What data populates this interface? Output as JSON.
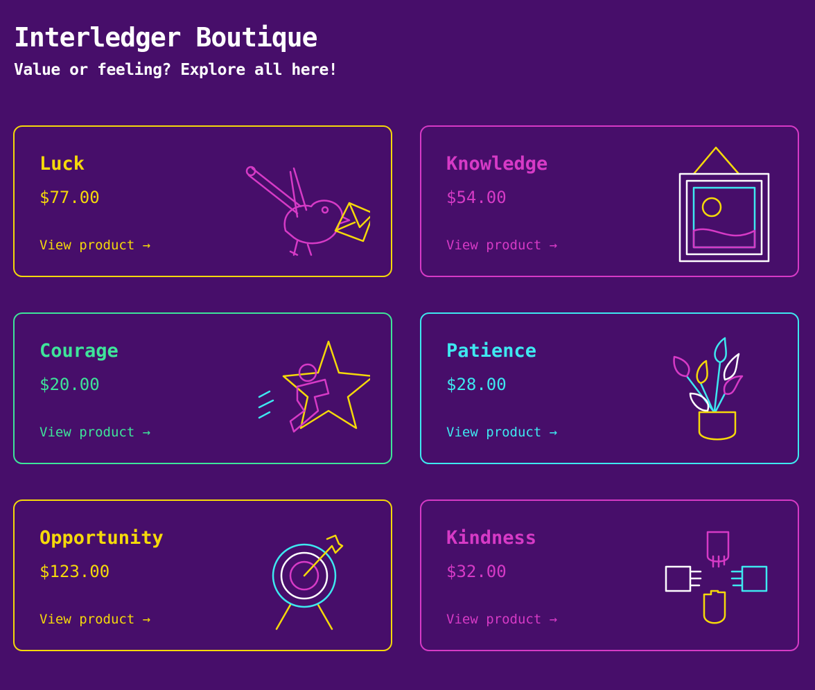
{
  "header": {
    "title": "Interledger Boutique",
    "subtitle": "Value or feeling? Explore all here!"
  },
  "colors": {
    "background": "#470e6a",
    "yellow": "#f5d90a",
    "pink": "#d63ac6",
    "green": "#3ee59a",
    "cyan": "#3ee8f0",
    "white": "#ffffff"
  },
  "products": [
    {
      "name": "Luck",
      "price": "$77.00",
      "link": "View product →",
      "icon": "bird-with-envelope-icon",
      "color": "#f5d90a"
    },
    {
      "name": "Knowledge",
      "price": "$54.00",
      "link": "View product →",
      "icon": "framed-picture-icon",
      "color": "#d63ac6"
    },
    {
      "name": "Courage",
      "price": "$20.00",
      "link": "View product →",
      "icon": "running-star-icon",
      "color": "#3ee59a"
    },
    {
      "name": "Patience",
      "price": "$28.00",
      "link": "View product →",
      "icon": "potted-plant-icon",
      "color": "#3ee8f0"
    },
    {
      "name": "Opportunity",
      "price": "$123.00",
      "link": "View product →",
      "icon": "target-arrow-icon",
      "color": "#f5d90a"
    },
    {
      "name": "Kindness",
      "price": "$32.00",
      "link": "View product →",
      "icon": "joined-hands-icon",
      "color": "#d63ac6"
    }
  ]
}
